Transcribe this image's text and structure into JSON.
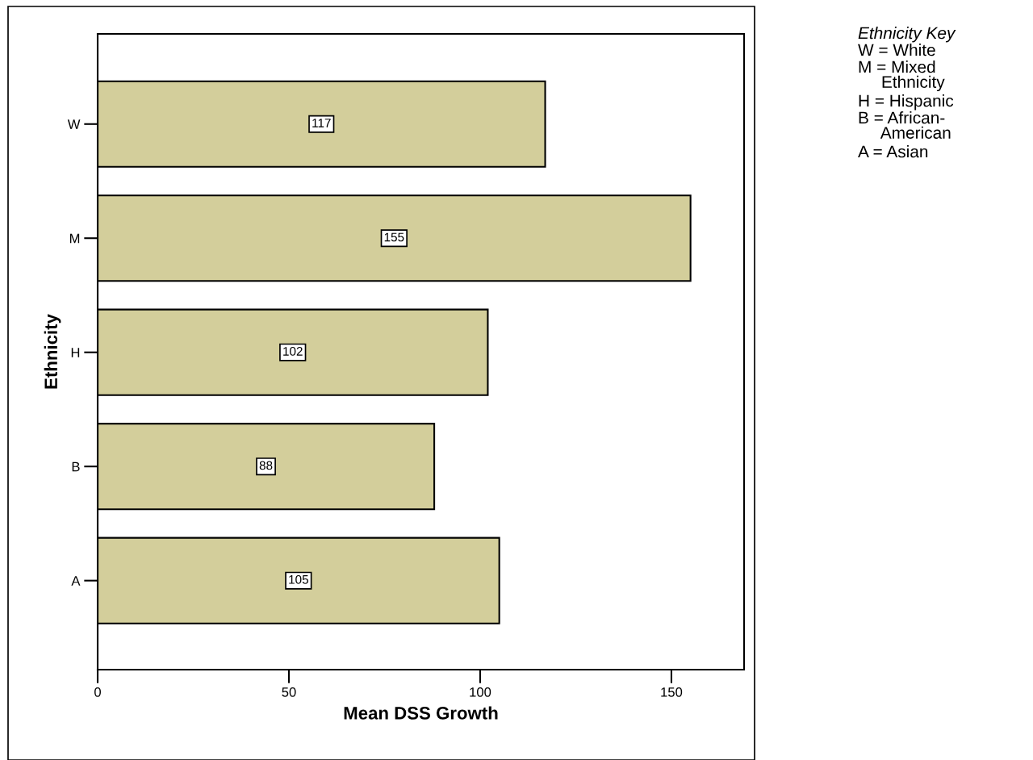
{
  "chart_data": {
    "type": "bar",
    "orientation": "horizontal",
    "categories": [
      "W",
      "M",
      "H",
      "B",
      "A"
    ],
    "values": [
      117,
      155,
      102,
      88,
      105
    ],
    "color": "#d3ce9b",
    "data_labels": true,
    "xlim": [
      0,
      169
    ],
    "xticks": [
      0,
      50,
      100,
      150
    ],
    "xlabel": "Mean DSS Growth",
    "ylabel": "Ethnicity",
    "grid": false,
    "legend": false,
    "annotations": [
      "Ethnicity Key",
      "W = White",
      "M = Mixed\n     Ethnicity",
      "H = Hispanic",
      "B = African-\n     American",
      "A = Asian"
    ]
  }
}
